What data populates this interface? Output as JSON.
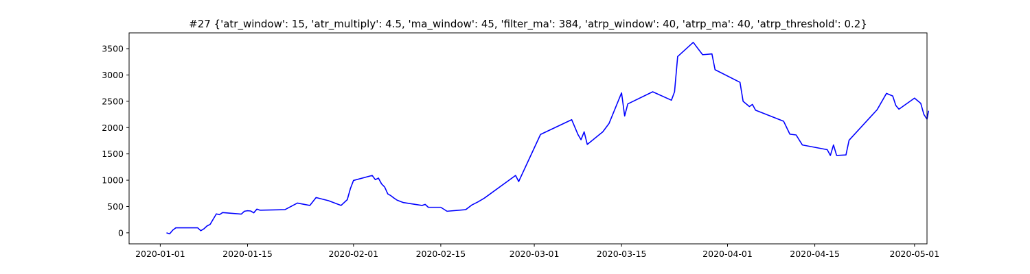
{
  "chart_data": {
    "type": "line",
    "title": "#27 {'atr_window': 15, 'atr_multiply': 4.5, 'ma_window': 45, 'filter_ma': 384, 'atrp_window': 40, 'atrp_ma': 40, 'atrp_threshold': 0.2}",
    "xlabel": "",
    "ylabel": "",
    "xlim": [
      "2019-12-27",
      "2020-05-03"
    ],
    "ylim": [
      -210,
      3800
    ],
    "grid": false,
    "line_color": "#0000ff",
    "x_ticks": [
      {
        "date": "2020-01-01",
        "label": "2020-01-01"
      },
      {
        "date": "2020-01-15",
        "label": "2020-01-15"
      },
      {
        "date": "2020-02-01",
        "label": "2020-02-01"
      },
      {
        "date": "2020-02-15",
        "label": "2020-02-15"
      },
      {
        "date": "2020-03-01",
        "label": "2020-03-01"
      },
      {
        "date": "2020-03-15",
        "label": "2020-03-15"
      },
      {
        "date": "2020-04-01",
        "label": "2020-04-01"
      },
      {
        "date": "2020-04-15",
        "label": "2020-04-15"
      },
      {
        "date": "2020-05-01",
        "label": "2020-05-01"
      }
    ],
    "y_ticks": [
      {
        "value": 0,
        "label": "0"
      },
      {
        "value": 500,
        "label": "500"
      },
      {
        "value": 1000,
        "label": "1000"
      },
      {
        "value": 1500,
        "label": "1500"
      },
      {
        "value": 2000,
        "label": "2000"
      },
      {
        "value": 2500,
        "label": "2500"
      },
      {
        "value": 3000,
        "label": "3000"
      },
      {
        "value": 3500,
        "label": "3500"
      }
    ],
    "series": [
      {
        "points": [
          [
            "2020-01-02",
            0
          ],
          [
            "2020-01-02 12:00",
            -20
          ],
          [
            "2020-01-03",
            50
          ],
          [
            "2020-01-03 12:00",
            95
          ],
          [
            "2020-01-06",
            95
          ],
          [
            "2020-01-07",
            95
          ],
          [
            "2020-01-07 12:00",
            40
          ],
          [
            "2020-01-08",
            75
          ],
          [
            "2020-01-08 12:00",
            130
          ],
          [
            "2020-01-09",
            160
          ],
          [
            "2020-01-09 12:00",
            260
          ],
          [
            "2020-01-10",
            360
          ],
          [
            "2020-01-10 12:00",
            345
          ],
          [
            "2020-01-11",
            385
          ],
          [
            "2020-01-14",
            355
          ],
          [
            "2020-01-14 12:00",
            410
          ],
          [
            "2020-01-15",
            420
          ],
          [
            "2020-01-15 12:00",
            415
          ],
          [
            "2020-01-16",
            380
          ],
          [
            "2020-01-16 12:00",
            450
          ],
          [
            "2020-01-17",
            430
          ],
          [
            "2020-01-21",
            440
          ],
          [
            "2020-01-23",
            565
          ],
          [
            "2020-01-25",
            520
          ],
          [
            "2020-01-26",
            670
          ],
          [
            "2020-01-28",
            610
          ],
          [
            "2020-01-30",
            520
          ],
          [
            "2020-01-31",
            630
          ],
          [
            "2020-01-31 12:00",
            840
          ],
          [
            "2020-02-01",
            995
          ],
          [
            "2020-02-04",
            1090
          ],
          [
            "2020-02-04 12:00",
            1010
          ],
          [
            "2020-02-05",
            1040
          ],
          [
            "2020-02-05 12:00",
            930
          ],
          [
            "2020-02-06",
            870
          ],
          [
            "2020-02-06 12:00",
            740
          ],
          [
            "2020-02-07",
            705
          ],
          [
            "2020-02-07 12:00",
            660
          ],
          [
            "2020-02-08",
            620
          ],
          [
            "2020-02-09",
            575
          ],
          [
            "2020-02-12",
            520
          ],
          [
            "2020-02-12 12:00",
            540
          ],
          [
            "2020-02-13",
            485
          ],
          [
            "2020-02-15",
            485
          ],
          [
            "2020-02-16",
            410
          ],
          [
            "2020-02-19",
            440
          ],
          [
            "2020-02-20",
            530
          ],
          [
            "2020-02-21",
            590
          ],
          [
            "2020-02-22",
            660
          ],
          [
            "2020-02-27",
            1090
          ],
          [
            "2020-02-27 12:00",
            975
          ],
          [
            "2020-03-02",
            1870
          ],
          [
            "2020-03-07",
            2150
          ],
          [
            "2020-03-08",
            1870
          ],
          [
            "2020-03-08 12:00",
            1770
          ],
          [
            "2020-03-09",
            1920
          ],
          [
            "2020-03-09 12:00",
            1680
          ],
          [
            "2020-03-12",
            1920
          ],
          [
            "2020-03-13",
            2080
          ],
          [
            "2020-03-15",
            2660
          ],
          [
            "2020-03-15 12:00",
            2220
          ],
          [
            "2020-03-16",
            2450
          ],
          [
            "2020-03-20",
            2680
          ],
          [
            "2020-03-23",
            2520
          ],
          [
            "2020-03-23 12:00",
            2680
          ],
          [
            "2020-03-24",
            3350
          ],
          [
            "2020-03-26 12:00",
            3620
          ],
          [
            "2020-03-28",
            3385
          ],
          [
            "2020-03-29 12:00",
            3400
          ],
          [
            "2020-03-30",
            3100
          ],
          [
            "2020-04-03",
            2860
          ],
          [
            "2020-04-03 12:00",
            2500
          ],
          [
            "2020-04-04 12:00",
            2400
          ],
          [
            "2020-04-05",
            2440
          ],
          [
            "2020-04-05 12:00",
            2330
          ],
          [
            "2020-04-10",
            2120
          ],
          [
            "2020-04-11",
            1875
          ],
          [
            "2020-04-12",
            1860
          ],
          [
            "2020-04-13",
            1670
          ],
          [
            "2020-04-17",
            1580
          ],
          [
            "2020-04-17 12:00",
            1470
          ],
          [
            "2020-04-18",
            1670
          ],
          [
            "2020-04-18 12:00",
            1470
          ],
          [
            "2020-04-20",
            1480
          ],
          [
            "2020-04-20 12:00",
            1760
          ],
          [
            "2020-04-25",
            2340
          ],
          [
            "2020-04-26 12:00",
            2650
          ],
          [
            "2020-04-27 12:00",
            2600
          ],
          [
            "2020-04-28",
            2420
          ],
          [
            "2020-04-28 12:00",
            2350
          ],
          [
            "2020-05-01",
            2560
          ],
          [
            "2020-05-02",
            2460
          ],
          [
            "2020-05-02 12:00",
            2250
          ],
          [
            "2020-05-03",
            2160
          ],
          [
            "2020-05-03 06:00",
            2320
          ]
        ]
      }
    ]
  }
}
